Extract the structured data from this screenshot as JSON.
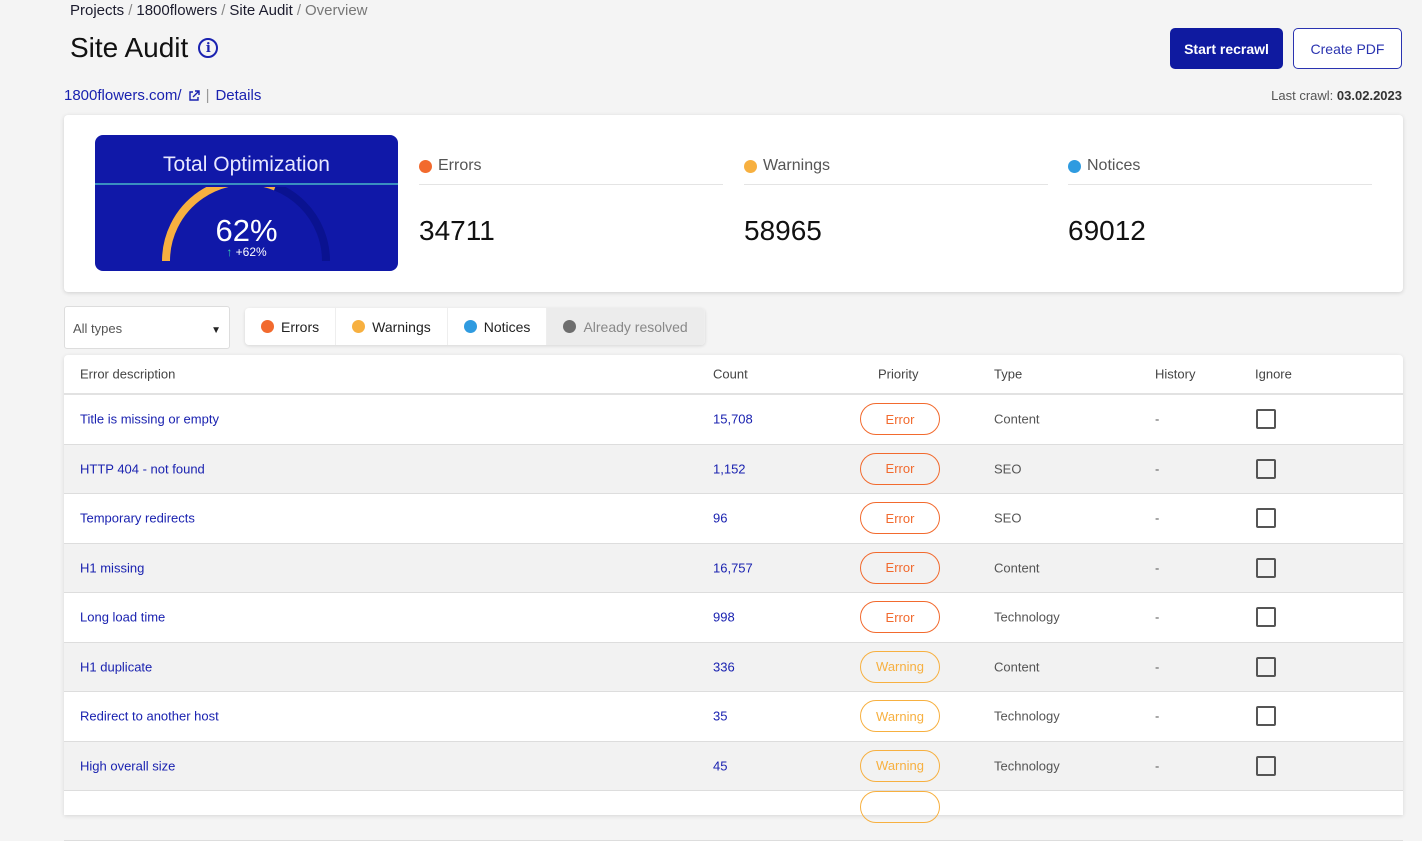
{
  "breadcrumb": [
    "Projects",
    "1800flowers",
    "Site Audit",
    "Overview"
  ],
  "title": "Site Audit",
  "site": {
    "url": "1800flowers.com/",
    "details": "Details"
  },
  "actions": {
    "recrawl": "Start recrawl",
    "pdf": "Create PDF"
  },
  "last_crawl": {
    "label": "Last crawl:",
    "date": "03.02.2023"
  },
  "optimization": {
    "title": "Total Optimization",
    "percent": 62,
    "percent_label": "62%",
    "delta": "+62%"
  },
  "stats": [
    {
      "label": "Errors",
      "value": "34711",
      "color": "#f26a2e"
    },
    {
      "label": "Warnings",
      "value": "58965",
      "color": "#f7b040"
    },
    {
      "label": "Notices",
      "value": "69012",
      "color": "#2f9be0"
    }
  ],
  "filter": {
    "select": "All types",
    "chips": [
      {
        "label": "Errors",
        "color": "#f26a2e"
      },
      {
        "label": "Warnings",
        "color": "#f7b040"
      },
      {
        "label": "Notices",
        "color": "#2f9be0"
      },
      {
        "label": "Already resolved",
        "color": "#6e6e6e"
      }
    ]
  },
  "colors": {
    "error": "#f26a2e",
    "warning": "#f7b040",
    "accent": "#1018a8"
  },
  "table": {
    "headers": [
      "Error description",
      "Count",
      "Priority",
      "Type",
      "History",
      "Ignore"
    ],
    "rows": [
      {
        "desc": "Title is missing or empty",
        "count": "15,708",
        "priority": "Error",
        "type": "Content",
        "history": "-"
      },
      {
        "desc": "HTTP 404 - not found",
        "count": "1,152",
        "priority": "Error",
        "type": "SEO",
        "history": "-"
      },
      {
        "desc": "Temporary redirects",
        "count": "96",
        "priority": "Error",
        "type": "SEO",
        "history": "-"
      },
      {
        "desc": "H1 missing",
        "count": "16,757",
        "priority": "Error",
        "type": "Content",
        "history": "-"
      },
      {
        "desc": "Long load time",
        "count": "998",
        "priority": "Error",
        "type": "Technology",
        "history": "-"
      },
      {
        "desc": "H1 duplicate",
        "count": "336",
        "priority": "Warning",
        "type": "Content",
        "history": "-"
      },
      {
        "desc": "Redirect to another host",
        "count": "35",
        "priority": "Warning",
        "type": "Technology",
        "history": "-"
      },
      {
        "desc": "High overall size",
        "count": "45",
        "priority": "Warning",
        "type": "Technology",
        "history": "-"
      }
    ]
  }
}
